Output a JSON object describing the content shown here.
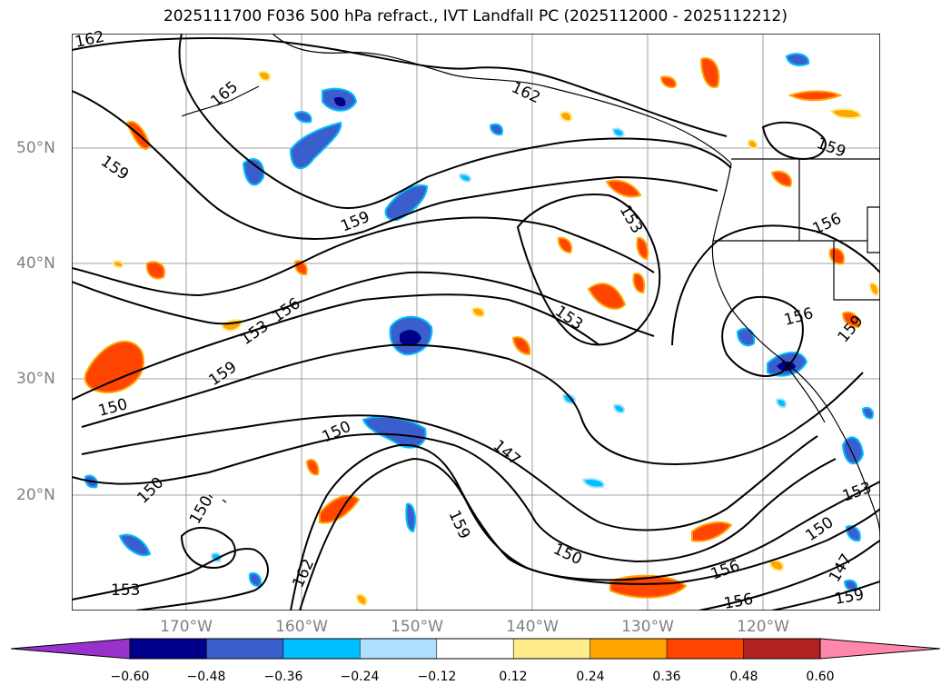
{
  "title": "2025111700 F036 500 hPa refract., IVT Landfall PC (2025112000 - 2025112212)",
  "map": {
    "lat_labels": [
      "50°N",
      "40°N",
      "30°N",
      "20°N"
    ],
    "lon_labels": [
      "170°W",
      "160°W",
      "150°W",
      "140°W",
      "130°W",
      "120°W"
    ],
    "contour_labels": [
      "162",
      "165",
      "159",
      "162",
      "159",
      "153",
      "159",
      "156",
      "153",
      "156",
      "159",
      "153",
      "156",
      "159",
      "150",
      "150",
      "147",
      "150",
      "150",
      "159",
      "150",
      "153",
      "162",
      "156",
      "156",
      "153",
      "150",
      "147",
      "159"
    ]
  },
  "colorbar": {
    "tick_labels": [
      "−0.60",
      "−0.48",
      "−0.36",
      "−0.24",
      "−0.12",
      "0.12",
      "0.24",
      "0.36",
      "0.48",
      "0.60"
    ],
    "colors": [
      "#9932cc",
      "#00008b",
      "#3a5fcd",
      "#00bfff",
      "#b0e0ff",
      "#ffffff",
      "#ffec8b",
      "#ffa500",
      "#ff4500",
      "#b22222",
      "#ff88aa"
    ]
  }
}
